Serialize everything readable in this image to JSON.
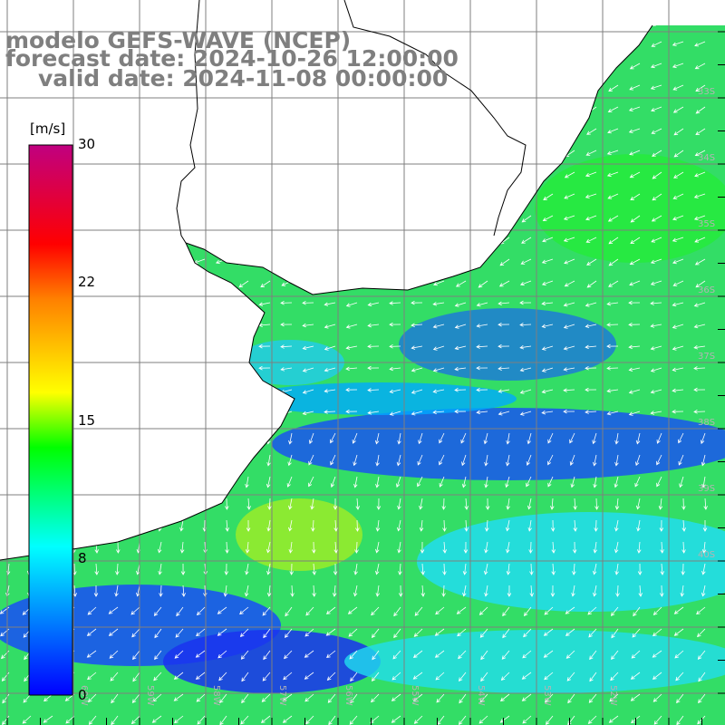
{
  "header": {
    "model_line": "modelo GEFS-WAVE (NCEP)",
    "forecast_line": "forecast date: 2024-10-26 12:00:00",
    "valid_line": "valid date: 2024-11-08 00:00:00"
  },
  "colorbar": {
    "unit": "[m/s]",
    "ticks": [
      {
        "value": 30,
        "label": "30"
      },
      {
        "value": 22,
        "label": "22"
      },
      {
        "value": 15,
        "label": "15"
      },
      {
        "value": 8,
        "label": "8"
      },
      {
        "value": 0,
        "label": "0"
      }
    ],
    "range": [
      0,
      30
    ],
    "gradient": [
      "#0000ff",
      "#00ffff",
      "#00ff00",
      "#ffff00",
      "#ff8000",
      "#ff0000",
      "#c00080"
    ]
  },
  "map": {
    "lon_range": [
      -61,
      -50
    ],
    "lat_range": [
      -45,
      -24
    ],
    "grid_line_color": "#7f7f7f",
    "coast_color": "#000000",
    "vector_color": "#ffffff",
    "lat_labels": [
      "33S",
      "34S",
      "35S",
      "36S",
      "37S",
      "38S",
      "39S",
      "40S"
    ],
    "lon_labels": [
      "60W",
      "59W",
      "58W",
      "57W",
      "56W",
      "55W",
      "54W",
      "53W",
      "52W"
    ]
  }
}
